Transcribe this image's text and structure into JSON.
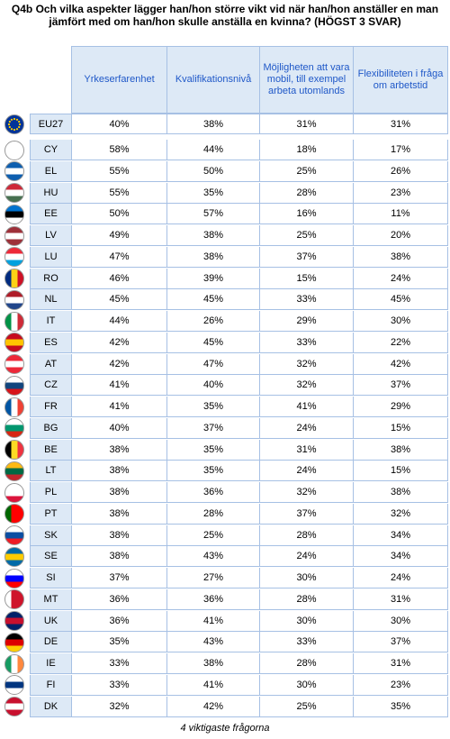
{
  "title": "Q4b Och vilka aspekter lägger han/hon större vikt vid när han/hon anställer en man jämfört med om han/hon skulle anställa en kvinna? (HÖGST 3 SVAR)",
  "footer": "4 viktigaste frågorna",
  "chart_data": {
    "type": "table",
    "columns": [
      "Yrkeserfarenhet",
      "Kvalifikationsnivå",
      "Möjligheten att vara mobil, till exempel arbeta utomlands",
      "Flexibiliteten i fråga om arbetstid"
    ],
    "rows": [
      {
        "country": "EU27",
        "values": [
          "40%",
          "38%",
          "31%",
          "31%"
        ],
        "flag": [
          "#003399",
          "#003399",
          "#003399"
        ]
      },
      {
        "country": "CY",
        "values": [
          "58%",
          "44%",
          "18%",
          "17%"
        ],
        "flag": [
          "#ffffff",
          "#ffffff",
          "#ffffff"
        ]
      },
      {
        "country": "EL",
        "values": [
          "55%",
          "50%",
          "25%",
          "26%"
        ],
        "flag": [
          "#0d5eaf",
          "#ffffff",
          "#0d5eaf"
        ]
      },
      {
        "country": "HU",
        "values": [
          "55%",
          "35%",
          "28%",
          "23%"
        ],
        "flag": [
          "#ce2939",
          "#ffffff",
          "#477050"
        ]
      },
      {
        "country": "EE",
        "values": [
          "50%",
          "57%",
          "16%",
          "11%"
        ],
        "flag": [
          "#0072ce",
          "#000000",
          "#ffffff"
        ]
      },
      {
        "country": "LV",
        "values": [
          "49%",
          "38%",
          "25%",
          "20%"
        ],
        "flag": [
          "#9e3039",
          "#ffffff",
          "#9e3039"
        ]
      },
      {
        "country": "LU",
        "values": [
          "47%",
          "38%",
          "37%",
          "38%"
        ],
        "flag": [
          "#ed2939",
          "#ffffff",
          "#00a1de"
        ]
      },
      {
        "country": "RO",
        "values": [
          "46%",
          "39%",
          "15%",
          "24%"
        ],
        "flag": [
          "#002b7f",
          "#fcd116",
          "#ce1126"
        ],
        "vertical": true
      },
      {
        "country": "NL",
        "values": [
          "45%",
          "45%",
          "33%",
          "45%"
        ],
        "flag": [
          "#ae1c28",
          "#ffffff",
          "#21468b"
        ]
      },
      {
        "country": "IT",
        "values": [
          "44%",
          "26%",
          "29%",
          "30%"
        ],
        "flag": [
          "#009246",
          "#ffffff",
          "#ce2b37"
        ],
        "vertical": true
      },
      {
        "country": "ES",
        "values": [
          "42%",
          "45%",
          "33%",
          "22%"
        ],
        "flag": [
          "#c60b1e",
          "#ffc400",
          "#c60b1e"
        ]
      },
      {
        "country": "AT",
        "values": [
          "42%",
          "47%",
          "32%",
          "42%"
        ],
        "flag": [
          "#ed2939",
          "#ffffff",
          "#ed2939"
        ]
      },
      {
        "country": "CZ",
        "values": [
          "41%",
          "40%",
          "32%",
          "37%"
        ],
        "flag": [
          "#ffffff",
          "#11457e",
          "#d7141a"
        ]
      },
      {
        "country": "FR",
        "values": [
          "41%",
          "35%",
          "41%",
          "29%"
        ],
        "flag": [
          "#0055a4",
          "#ffffff",
          "#ef4135"
        ],
        "vertical": true
      },
      {
        "country": "BG",
        "values": [
          "40%",
          "37%",
          "24%",
          "15%"
        ],
        "flag": [
          "#ffffff",
          "#00966e",
          "#d62612"
        ]
      },
      {
        "country": "BE",
        "values": [
          "38%",
          "35%",
          "31%",
          "38%"
        ],
        "flag": [
          "#000000",
          "#fdda24",
          "#ef3340"
        ],
        "vertical": true
      },
      {
        "country": "LT",
        "values": [
          "38%",
          "35%",
          "24%",
          "15%"
        ],
        "flag": [
          "#fdb913",
          "#006a44",
          "#c1272d"
        ]
      },
      {
        "country": "PL",
        "values": [
          "38%",
          "36%",
          "32%",
          "38%"
        ],
        "flag": [
          "#ffffff",
          "#ffffff",
          "#dc143c"
        ]
      },
      {
        "country": "PT",
        "values": [
          "38%",
          "28%",
          "37%",
          "32%"
        ],
        "flag": [
          "#006600",
          "#ff0000",
          "#ff0000"
        ],
        "vertical": true
      },
      {
        "country": "SK",
        "values": [
          "38%",
          "25%",
          "28%",
          "34%"
        ],
        "flag": [
          "#ffffff",
          "#0b4ea2",
          "#ee1c25"
        ]
      },
      {
        "country": "SE",
        "values": [
          "38%",
          "43%",
          "24%",
          "34%"
        ],
        "flag": [
          "#006aa7",
          "#fecc00",
          "#006aa7"
        ]
      },
      {
        "country": "SI",
        "values": [
          "37%",
          "27%",
          "30%",
          "24%"
        ],
        "flag": [
          "#ffffff",
          "#0000ff",
          "#ff0000"
        ]
      },
      {
        "country": "MT",
        "values": [
          "36%",
          "36%",
          "28%",
          "31%"
        ],
        "flag": [
          "#ffffff",
          "#cf142b",
          "#cf142b"
        ],
        "vertical": true
      },
      {
        "country": "UK",
        "values": [
          "36%",
          "41%",
          "30%",
          "30%"
        ],
        "flag": [
          "#012169",
          "#c8102e",
          "#012169"
        ]
      },
      {
        "country": "DE",
        "values": [
          "35%",
          "43%",
          "33%",
          "37%"
        ],
        "flag": [
          "#000000",
          "#dd0000",
          "#ffce00"
        ]
      },
      {
        "country": "IE",
        "values": [
          "33%",
          "38%",
          "28%",
          "31%"
        ],
        "flag": [
          "#169b62",
          "#ffffff",
          "#ff883e"
        ],
        "vertical": true
      },
      {
        "country": "FI",
        "values": [
          "33%",
          "41%",
          "30%",
          "23%"
        ],
        "flag": [
          "#ffffff",
          "#003580",
          "#ffffff"
        ]
      },
      {
        "country": "DK",
        "values": [
          "32%",
          "42%",
          "25%",
          "35%"
        ],
        "flag": [
          "#c8102e",
          "#ffffff",
          "#c8102e"
        ]
      }
    ]
  }
}
